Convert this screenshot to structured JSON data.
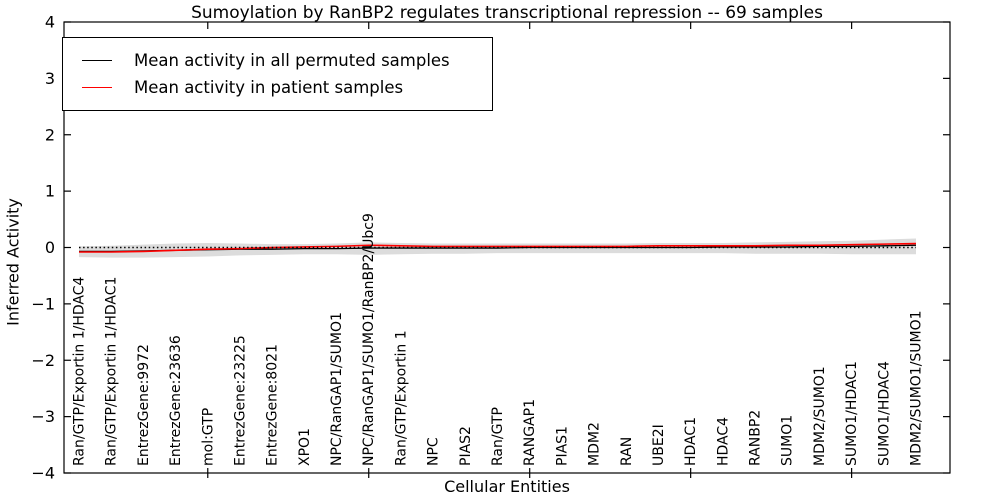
{
  "figure": {
    "background": "#ffffff"
  },
  "chart_data": {
    "type": "line",
    "title": "Sumoylation by RanBP2 regulates transcriptional repression -- 69 samples",
    "xlabel": "Cellular Entities",
    "ylabel": "Inferred Activity",
    "ylim": [
      -4,
      4
    ],
    "yticks": [
      4,
      3,
      2,
      1,
      0,
      -1,
      -2,
      -3,
      -4
    ],
    "ytick_labels": [
      "4",
      "3",
      "2",
      "1",
      "0",
      "−1",
      "−2",
      "−3",
      "−4"
    ],
    "xtick_mark_indices": [
      4,
      9,
      14,
      19,
      24
    ],
    "grid": false,
    "legend_position": "upper-left",
    "categories": [
      "Ran/GTP/Exportin 1/HDAC4",
      "Ran/GTP/Exportin 1/HDAC1",
      "EntrezGene:9972",
      "EntrezGene:23636",
      "mol:GTP",
      "EntrezGene:23225",
      "EntrezGene:8021",
      "XPO1",
      "NPC/RanGAP1/SUMO1",
      "NPC/RanGAP1/SUMO1/RanBP2/Ubc9",
      "Ran/GTP/Exportin 1",
      "NPC",
      "PIAS2",
      "Ran/GTP",
      "RANGAP1",
      "PIAS1",
      "MDM2",
      "RAN",
      "UBE2I",
      "HDAC1",
      "HDAC4",
      "RANBP2",
      "SUMO1",
      "MDM2/SUMO1",
      "SUMO1/HDAC1",
      "SUMO1/HDAC4",
      "MDM2/SUMO1/SUMO1"
    ],
    "series": [
      {
        "name": "Mean activity in all permuted samples",
        "color": "#000000",
        "values": [
          -0.07,
          -0.07,
          -0.06,
          -0.05,
          -0.04,
          -0.03,
          -0.03,
          -0.02,
          -0.02,
          -0.01,
          -0.01,
          -0.01,
          -0.01,
          -0.01,
          0,
          0,
          0,
          0,
          0,
          0,
          0.01,
          0.01,
          0.01,
          0.02,
          0.02,
          0.03,
          0.04
        ]
      },
      {
        "name": "Mean activity in patient samples",
        "color": "#ff0000",
        "values": [
          -0.08,
          -0.08,
          -0.07,
          -0.05,
          -0.03,
          -0.02,
          0,
          0.01,
          0.02,
          0.04,
          0.03,
          0.02,
          0.02,
          0.02,
          0.02,
          0.02,
          0.02,
          0.02,
          0.03,
          0.03,
          0.03,
          0.03,
          0.04,
          0.04,
          0.05,
          0.06,
          0.07
        ]
      }
    ],
    "band": {
      "name": "permuted samples spread band",
      "color": "#dcdcdc",
      "upper": [
        0.02,
        0.03,
        0.05,
        0.07,
        0.08,
        0.07,
        0.06,
        0.06,
        0.07,
        0.09,
        0.08,
        0.07,
        0.07,
        0.07,
        0.07,
        0.07,
        0.07,
        0.07,
        0.08,
        0.08,
        0.08,
        0.09,
        0.1,
        0.11,
        0.12,
        0.14,
        0.16
      ],
      "lower": [
        -0.17,
        -0.18,
        -0.18,
        -0.17,
        -0.16,
        -0.14,
        -0.13,
        -0.12,
        -0.12,
        -0.13,
        -0.12,
        -0.11,
        -0.11,
        -0.1,
        -0.1,
        -0.1,
        -0.1,
        -0.1,
        -0.1,
        -0.1,
        -0.1,
        -0.11,
        -0.11,
        -0.11,
        -0.12,
        -0.12,
        -0.12
      ]
    },
    "zero_line": {
      "value": 0,
      "color": "#000000",
      "style": "dotted"
    }
  }
}
